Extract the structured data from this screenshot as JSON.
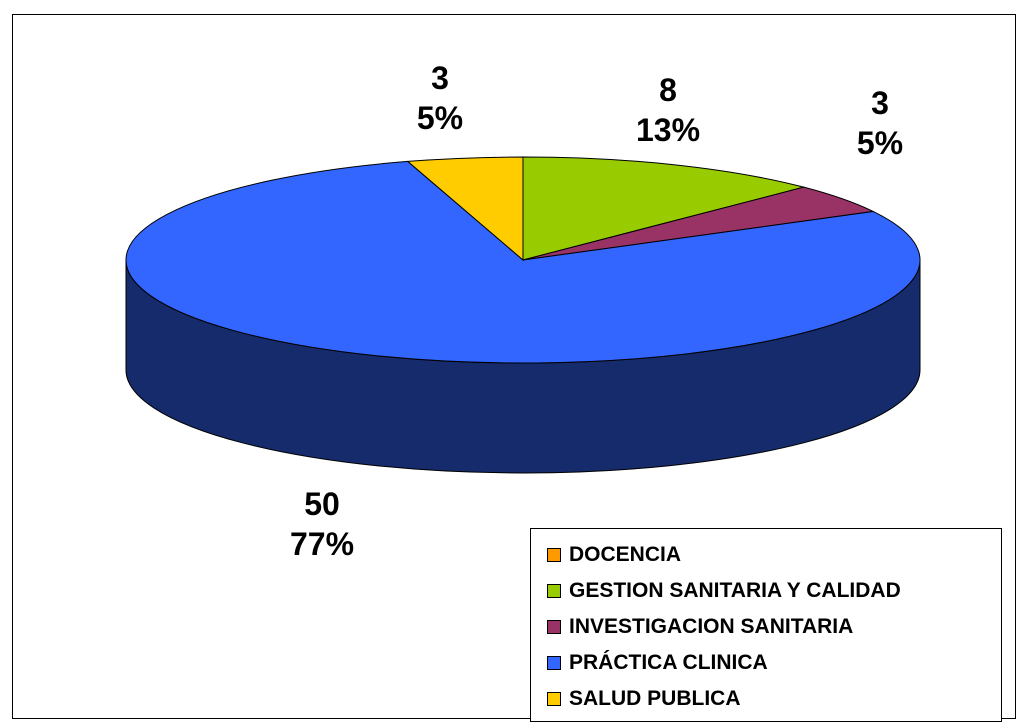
{
  "chart_data": {
    "type": "pie",
    "style": "3d",
    "title": "",
    "slices": [
      {
        "name": "DOCENCIA",
        "value": 0,
        "percent": "0%",
        "color": "#ff9900",
        "shown_value": "",
        "shown_percent": ""
      },
      {
        "name": "GESTION SANITARIA Y CALIDAD",
        "value": 8,
        "percent": "13%",
        "color": "#99cc00",
        "shown_value": "8",
        "shown_percent": "13%"
      },
      {
        "name": "INVESTIGACION SANITARIA",
        "value": 3,
        "percent": "5%",
        "color": "#993366",
        "shown_value": "3",
        "shown_percent": "5%"
      },
      {
        "name": "PRÁCTICA CLINICA",
        "value": 50,
        "percent": "77%",
        "color": "#3366ff",
        "shown_value": "50",
        "shown_percent": "77%"
      },
      {
        "name": "SALUD PUBLICA",
        "value": 3,
        "percent": "5%",
        "color": "#ffcc00",
        "shown_value": "3",
        "shown_percent": "5%"
      }
    ],
    "legend_position": "bottom-right"
  }
}
